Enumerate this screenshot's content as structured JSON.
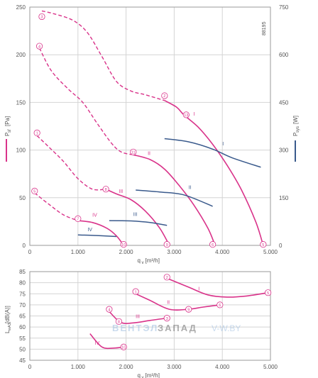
{
  "chart_data": [
    {
      "type": "line",
      "code": "88195",
      "xlabel": "q",
      "xlabel_sub": "v",
      "xlabel_unit": "[m³/h]",
      "xlim": [
        0,
        5000
      ],
      "x_ticks": [
        0,
        1000,
        2000,
        3000,
        4000,
        5000
      ],
      "x_tick_labels": [
        "0",
        "1.000",
        "2.000",
        "3.000",
        "4.000",
        "5.000"
      ],
      "ylabel": "P",
      "ylabel_sub": "sf",
      "ylabel_unit": "[Pa]",
      "ylim": [
        0,
        250
      ],
      "y_ticks": [
        0,
        50,
        100,
        150,
        200,
        250
      ],
      "y2label": "P",
      "y2label_sub": "sys",
      "y2label_unit": "[W]",
      "y2lim": [
        0,
        750
      ],
      "y2_ticks": [
        0,
        150,
        300,
        450,
        600,
        750
      ],
      "colors": {
        "pressure": "#d9338a",
        "power": "#3a5a8c",
        "grid": "#d4d4d4",
        "axis": "#9a9a9a",
        "text": "#555555"
      },
      "series": [
        {
          "name": "I",
          "kind": "pressure",
          "dashed": [
            [
              250,
              246
            ],
            [
              500,
              243
            ],
            [
              900,
              236
            ],
            [
              1200,
              223
            ],
            [
              1500,
              198
            ],
            [
              1800,
              172
            ],
            [
              2100,
              162
            ],
            [
              2400,
              158
            ],
            [
              2800,
              152
            ]
          ],
          "values": [
            [
              2800,
              152
            ],
            [
              3050,
              145
            ],
            [
              3200,
              137
            ],
            [
              3500,
              124
            ],
            [
              3800,
              106
            ],
            [
              4100,
              84
            ],
            [
              4400,
              58
            ],
            [
              4700,
              24
            ],
            [
              4850,
              0
            ]
          ]
        },
        {
          "name": "II",
          "kind": "pressure",
          "dashed": [
            [
              200,
              207
            ],
            [
              450,
              183
            ],
            [
              800,
              164
            ],
            [
              1100,
              150
            ],
            [
              1400,
              128
            ],
            [
              1700,
              107
            ],
            [
              1900,
              98
            ],
            [
              2150,
              95
            ]
          ],
          "values": [
            [
              2150,
              95
            ],
            [
              2500,
              90
            ],
            [
              2800,
              80
            ],
            [
              3100,
              63
            ],
            [
              3400,
              43
            ],
            [
              3700,
              18
            ],
            [
              3850,
              0
            ]
          ]
        },
        {
          "name": "III",
          "kind": "pressure",
          "dashed": [
            [
              150,
              115
            ],
            [
              400,
              103
            ],
            [
              700,
              88
            ],
            [
              1000,
              70
            ],
            [
              1300,
              59
            ],
            [
              1580,
              59
            ]
          ],
          "values": [
            [
              1580,
              59
            ],
            [
              1800,
              54
            ],
            [
              2100,
              48
            ],
            [
              2400,
              36
            ],
            [
              2700,
              18
            ],
            [
              2900,
              0
            ]
          ]
        },
        {
          "name": "IV",
          "kind": "pressure",
          "dashed": [
            [
              100,
              55
            ],
            [
              400,
              43
            ],
            [
              700,
              32
            ],
            [
              1000,
              26
            ]
          ],
          "values": [
            [
              1000,
              26
            ],
            [
              1300,
              24
            ],
            [
              1600,
              18
            ],
            [
              1800,
              10
            ],
            [
              1950,
              0
            ]
          ]
        },
        {
          "name": "I",
          "kind": "power",
          "y_axis": "secondary",
          "values": [
            [
              2800,
              336
            ],
            [
              3300,
              326
            ],
            [
              3800,
              303
            ],
            [
              4200,
              276
            ],
            [
              4800,
              246
            ]
          ]
        },
        {
          "name": "II",
          "kind": "power",
          "y_axis": "secondary",
          "values": [
            [
              2200,
              174
            ],
            [
              2700,
              168
            ],
            [
              3200,
              159
            ],
            [
              3800,
              123
            ]
          ]
        },
        {
          "name": "III",
          "kind": "power",
          "y_axis": "secondary",
          "values": [
            [
              1650,
              78
            ],
            [
              2100,
              77
            ],
            [
              2500,
              72
            ],
            [
              2850,
              63
            ]
          ]
        },
        {
          "name": "IV",
          "kind": "power",
          "y_axis": "secondary",
          "values": [
            [
              1000,
              33
            ],
            [
              1400,
              31
            ],
            [
              1800,
              28
            ]
          ]
        }
      ],
      "markers": [
        {
          "label": "1",
          "x": 150,
          "y": 118
        },
        {
          "label": "2",
          "x": 2800,
          "y": 157
        },
        {
          "label": "3",
          "x": 250,
          "y": 240
        },
        {
          "label": "4",
          "x": 200,
          "y": 209
        },
        {
          "label": "5",
          "x": 100,
          "y": 57
        },
        {
          "label": "6",
          "x": 3800,
          "y": 1
        },
        {
          "label": "7",
          "x": 1000,
          "y": 28
        },
        {
          "label": "8",
          "x": 1580,
          "y": 59
        },
        {
          "label": "9",
          "x": 2850,
          "y": 1
        },
        {
          "label": "10",
          "x": 1950,
          "y": 1
        },
        {
          "label": "11",
          "x": 2150,
          "y": 98
        },
        {
          "label": "13",
          "x": 3250,
          "y": 137
        },
        {
          "label": "5",
          "x": 4850,
          "y": 1
        }
      ],
      "curve_labels": [
        {
          "text": "I",
          "x": 3400,
          "y": 136,
          "kind": "pressure"
        },
        {
          "text": "II",
          "x": 2450,
          "y": 95,
          "kind": "pressure"
        },
        {
          "text": "III",
          "x": 1850,
          "y": 55,
          "kind": "pressure"
        },
        {
          "text": "IV",
          "x": 1300,
          "y": 30,
          "kind": "pressure"
        },
        {
          "text": "I",
          "x": 4000,
          "y": 105,
          "kind": "power"
        },
        {
          "text": "II",
          "x": 3300,
          "y": 59,
          "kind": "power"
        },
        {
          "text": "III",
          "x": 2150,
          "y": 31,
          "kind": "power"
        },
        {
          "text": "IV",
          "x": 1200,
          "y": 15,
          "kind": "power"
        }
      ]
    },
    {
      "type": "line",
      "xlabel": "q",
      "xlabel_sub": "v",
      "xlabel_unit": "[m³/h]",
      "xlim": [
        0,
        5000
      ],
      "x_ticks": [
        0,
        1000,
        2000,
        3000,
        4000,
        5000
      ],
      "x_tick_labels": [
        "0",
        "1.000",
        "2.000",
        "3.000",
        "4.000",
        "5.000"
      ],
      "ylabel": "L",
      "ylabel_sub": "wA3",
      "ylabel_unit": "[dB(A)]",
      "ylim": [
        45,
        85
      ],
      "y_ticks": [
        45,
        50,
        55,
        60,
        65,
        70,
        75,
        80,
        85
      ],
      "series": [
        {
          "name": "I",
          "values": [
            [
              2850,
              82
            ],
            [
              3300,
              78
            ],
            [
              3700,
              74.5
            ],
            [
              4100,
              73.5
            ],
            [
              4500,
              74
            ],
            [
              4950,
              75.5
            ]
          ]
        },
        {
          "name": "II",
          "values": [
            [
              2200,
              75
            ],
            [
              2500,
              72
            ],
            [
              2900,
              68
            ],
            [
              3300,
              68
            ],
            [
              3600,
              69
            ],
            [
              3950,
              70
            ]
          ]
        },
        {
          "name": "III",
          "values": [
            [
              1650,
              67
            ],
            [
              1900,
              62
            ],
            [
              2200,
              62
            ],
            [
              2500,
              63
            ],
            [
              2850,
              64
            ]
          ]
        },
        {
          "name": "IV",
          "values": [
            [
              1250,
              57
            ],
            [
              1500,
              51
            ],
            [
              1750,
              50.5
            ],
            [
              1950,
              51
            ]
          ]
        }
      ],
      "markers": [
        {
          "label": "2",
          "x": 2850,
          "y": 82.5
        },
        {
          "label": "1",
          "x": 2200,
          "y": 76
        },
        {
          "label": "4",
          "x": 1650,
          "y": 68
        },
        {
          "label": "8",
          "x": 1850,
          "y": 62.5
        },
        {
          "label": "9",
          "x": 3300,
          "y": 68
        },
        {
          "label": "6",
          "x": 3950,
          "y": 70
        },
        {
          "label": "3",
          "x": 2850,
          "y": 64
        },
        {
          "label": "5",
          "x": 4950,
          "y": 75.5
        },
        {
          "label": "10",
          "x": 1950,
          "y": 51
        }
      ],
      "curve_labels": [
        {
          "text": "I",
          "x": 3500,
          "y": 76.5
        },
        {
          "text": "II",
          "x": 2850,
          "y": 70.5
        },
        {
          "text": "III",
          "x": 2200,
          "y": 64
        },
        {
          "text": "IV",
          "x": 1350,
          "y": 52
        }
      ]
    }
  ],
  "watermark": {
    "brand_part1": "ВЕНТЭЛ",
    "brand_part2": "ЗАПАД",
    "site": "V-W.BY"
  }
}
